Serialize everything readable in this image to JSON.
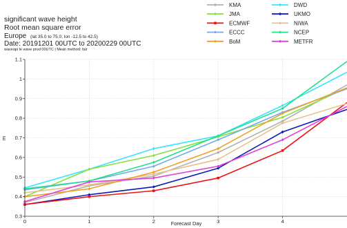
{
  "header": {
    "line1": "significant wave height",
    "line2": "Root mean square error",
    "region_name": "Europe",
    "region_bounds": "(lat  35.0 to 75.0, lon  -12.5 to 42.5)",
    "date": "Date: 20191201 00UTC to 20200229 00UTC",
    "subnote": "waveapi le wave prod 00UTC | Mean method: fair"
  },
  "chart_data": {
    "type": "line",
    "title": "",
    "xlabel": "Forecast Day",
    "ylabel": "m",
    "xlim": [
      0,
      5
    ],
    "ylim": [
      0.3,
      1.1
    ],
    "x_ticks": [
      "0",
      "1",
      "2",
      "3",
      "4"
    ],
    "y_ticks": [
      "0.3",
      "0.4",
      "0.5",
      "0.6",
      "0.7",
      "0.8",
      "0.9",
      "1",
      "1.1"
    ],
    "grid": true,
    "legend_position": "top-right",
    "x": [
      0,
      1,
      2,
      3,
      4,
      5
    ],
    "series": [
      {
        "name": "KMA",
        "color": "#b0b0b0",
        "marker": "diamond",
        "values": [
          0.37,
          0.455,
          0.505,
          0.625,
          0.785,
          0.97
        ]
      },
      {
        "name": "DWD",
        "color": "#33e6ff",
        "marker": "diamond",
        "values": [
          0.445,
          0.54,
          0.645,
          0.71,
          0.865,
          1.035
        ]
      },
      {
        "name": "JMA",
        "color": "#88e040",
        "marker": "diamond",
        "values": [
          0.4,
          0.54,
          0.61,
          0.705,
          0.805,
          0.955
        ]
      },
      {
        "name": "UKMO",
        "color": "#0a1ab5",
        "marker": "diamond",
        "values": [
          0.36,
          0.41,
          0.45,
          0.545,
          0.73,
          0.845
        ]
      },
      {
        "name": "ECMWF",
        "color": "#ee1111",
        "marker": "square",
        "values": [
          0.36,
          0.4,
          0.43,
          0.495,
          0.635,
          0.88
        ]
      },
      {
        "name": "NIWA",
        "color": "#e8c090",
        "marker": "diamond",
        "values": [
          0.42,
          0.46,
          0.515,
          0.59,
          0.775,
          0.875
        ]
      },
      {
        "name": "ECCC",
        "color": "#77a8e8",
        "marker": "diamond",
        "values": [
          0.435,
          0.48,
          0.555,
          0.69,
          0.83,
          0.95
        ]
      },
      {
        "name": "NCEP",
        "color": "#22e090",
        "marker": "diamond",
        "values": [
          0.44,
          0.48,
          0.575,
          0.71,
          0.85,
          1.09
        ]
      },
      {
        "name": "BoM",
        "color": "#f0a020",
        "marker": "diamond",
        "values": [
          0.4,
          0.44,
          0.525,
          0.645,
          0.825,
          0.955
        ]
      },
      {
        "name": "METFR",
        "color": "#e040d8",
        "marker": "diamond",
        "values": [
          0.375,
          0.475,
          0.495,
          0.555,
          0.69,
          0.86
        ]
      }
    ]
  }
}
